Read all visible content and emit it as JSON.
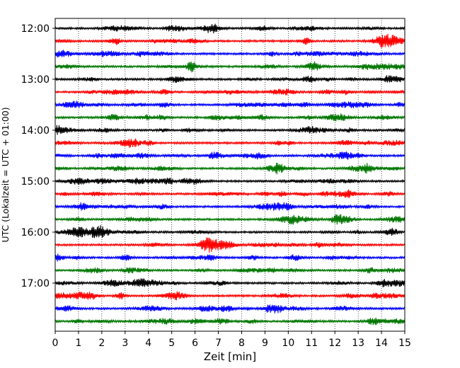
{
  "chart_data": {
    "type": "line",
    "title": "",
    "xlabel": "Zeit  [min]",
    "ylabel": "UTC (Lokalzeit = UTC + 01:00)",
    "xlim": [
      0,
      15
    ],
    "x_ticks": [
      0,
      1,
      2,
      3,
      4,
      5,
      6,
      7,
      8,
      9,
      10,
      11,
      12,
      13,
      14,
      15
    ],
    "y_ticks": [
      "12:00",
      "13:00",
      "14:00",
      "15:00",
      "16:00",
      "17:00"
    ],
    "trace_interval_minutes": 15,
    "grid": "vertical dotted",
    "traces": [
      {
        "start": "12:00",
        "color": "#000000"
      },
      {
        "start": "12:15",
        "color": "#ff0000"
      },
      {
        "start": "12:30",
        "color": "#0000ff"
      },
      {
        "start": "12:45",
        "color": "#007700"
      },
      {
        "start": "13:00",
        "color": "#000000"
      },
      {
        "start": "13:15",
        "color": "#ff0000"
      },
      {
        "start": "13:30",
        "color": "#0000ff"
      },
      {
        "start": "13:45",
        "color": "#007700"
      },
      {
        "start": "14:00",
        "color": "#000000"
      },
      {
        "start": "14:15",
        "color": "#ff0000"
      },
      {
        "start": "14:30",
        "color": "#0000ff"
      },
      {
        "start": "14:45",
        "color": "#007700"
      },
      {
        "start": "15:00",
        "color": "#000000"
      },
      {
        "start": "15:15",
        "color": "#ff0000"
      },
      {
        "start": "15:30",
        "color": "#0000ff"
      },
      {
        "start": "15:45",
        "color": "#007700"
      },
      {
        "start": "16:00",
        "color": "#000000"
      },
      {
        "start": "16:15",
        "color": "#ff0000"
      },
      {
        "start": "16:30",
        "color": "#0000ff"
      },
      {
        "start": "16:45",
        "color": "#007700"
      },
      {
        "start": "17:00",
        "color": "#000000"
      },
      {
        "start": "17:15",
        "color": "#ff0000"
      },
      {
        "start": "17:30",
        "color": "#0000ff"
      },
      {
        "start": "17:45",
        "color": "#007700"
      }
    ]
  }
}
